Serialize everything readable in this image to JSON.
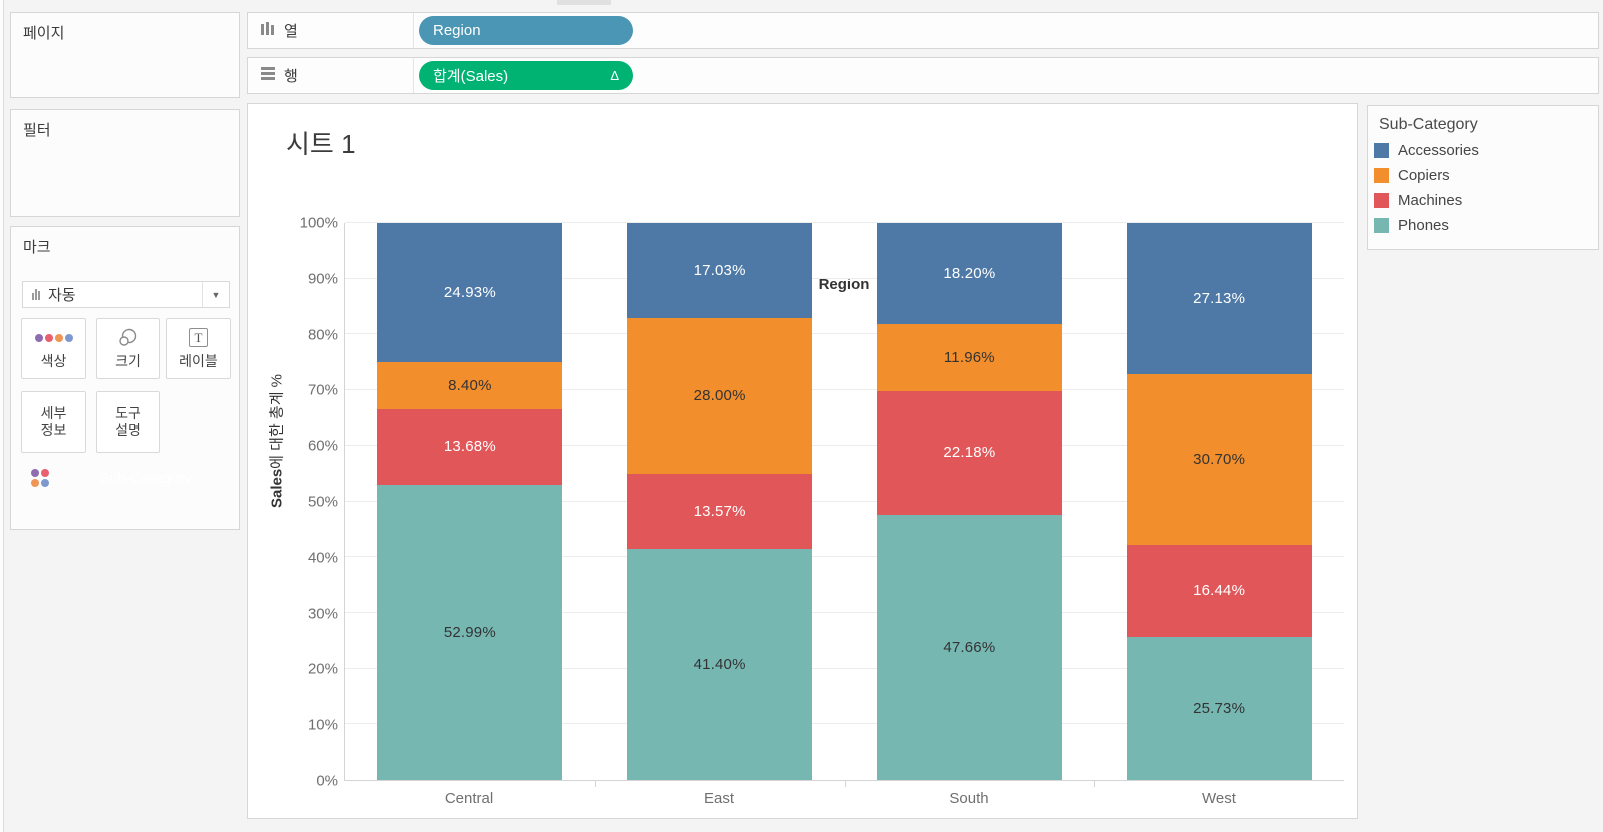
{
  "window": {
    "background": "#f4f4f5"
  },
  "left_panel": {
    "pages_card": {
      "title": "페이지"
    },
    "filters_card": {
      "title": "필터"
    },
    "marks_card": {
      "title": "마크",
      "mark_type_label": "자동",
      "dropdown_caret": "▼",
      "buttons": [
        {
          "label": "색상",
          "icon": "color-dots-icon"
        },
        {
          "label": "크기",
          "icon": "size-circles-icon"
        },
        {
          "label": "레이블",
          "icon": "text-label-icon"
        },
        {
          "label": "세부 정보",
          "icon": null
        },
        {
          "label": "도구 설명",
          "icon": null
        }
      ],
      "color_icon_dots": [
        "#8f6bb0",
        "#ea5f6e",
        "#f09555",
        "#7d97cf"
      ],
      "pill": {
        "label": "Sub-Category",
        "color": "#4a96b4"
      }
    }
  },
  "shelves": {
    "columns": {
      "label": "열",
      "pills": [
        {
          "label": "Region",
          "color": "#4a96b4"
        }
      ]
    },
    "rows": {
      "label": "행",
      "pills": [
        {
          "label": "합계(Sales)",
          "color": "#00b373",
          "badge": "Δ"
        }
      ]
    }
  },
  "worksheet": {
    "title": "시트 1",
    "column_header": "Region"
  },
  "legend": {
    "title": "Sub-Category",
    "items": [
      {
        "label": "Accessories",
        "color": "#4e79a7"
      },
      {
        "label": "Copiers",
        "color": "#f28e2b"
      },
      {
        "label": "Machines",
        "color": "#e15759"
      },
      {
        "label": "Phones",
        "color": "#76b7b2"
      }
    ]
  },
  "chart_data": {
    "type": "bar",
    "stacked": true,
    "percent_of_total": true,
    "title": "시트 1",
    "x_header": "Region",
    "categories": [
      "Central",
      "East",
      "South",
      "West"
    ],
    "series": [
      {
        "name": "Accessories",
        "color": "#4e79a7",
        "label_color": "#ffffff",
        "values": [
          24.93,
          17.03,
          18.2,
          27.13
        ],
        "labels": [
          "24.93%",
          "17.03%",
          "18.20%",
          "27.13%"
        ]
      },
      {
        "name": "Copiers",
        "color": "#f28e2b",
        "label_color": "#333333",
        "values": [
          8.4,
          28.0,
          11.96,
          30.7
        ],
        "labels": [
          "8.40%",
          "28.00%",
          "11.96%",
          "30.70%"
        ]
      },
      {
        "name": "Machines",
        "color": "#e15759",
        "label_color": "#ffffff",
        "values": [
          13.68,
          13.57,
          22.18,
          16.44
        ],
        "labels": [
          "13.68%",
          "13.57%",
          "22.18%",
          "16.44%"
        ]
      },
      {
        "name": "Phones",
        "color": "#76b7b2",
        "label_color": "#333333",
        "values": [
          52.99,
          41.4,
          47.66,
          25.73
        ],
        "labels": [
          "52.99%",
          "41.40%",
          "47.66%",
          "25.73%"
        ]
      }
    ],
    "stack_order_bottom_to_top": [
      "Phones",
      "Machines",
      "Copiers",
      "Accessories"
    ],
    "y_axis": {
      "title_bold": "Sales",
      "title_rest": "에 대한 총계 %",
      "min": 0,
      "max": 100,
      "ticks": [
        "0%",
        "10%",
        "20%",
        "30%",
        "40%",
        "50%",
        "60%",
        "70%",
        "80%",
        "90%",
        "100%"
      ]
    },
    "grid": true,
    "legend_position": "right"
  }
}
